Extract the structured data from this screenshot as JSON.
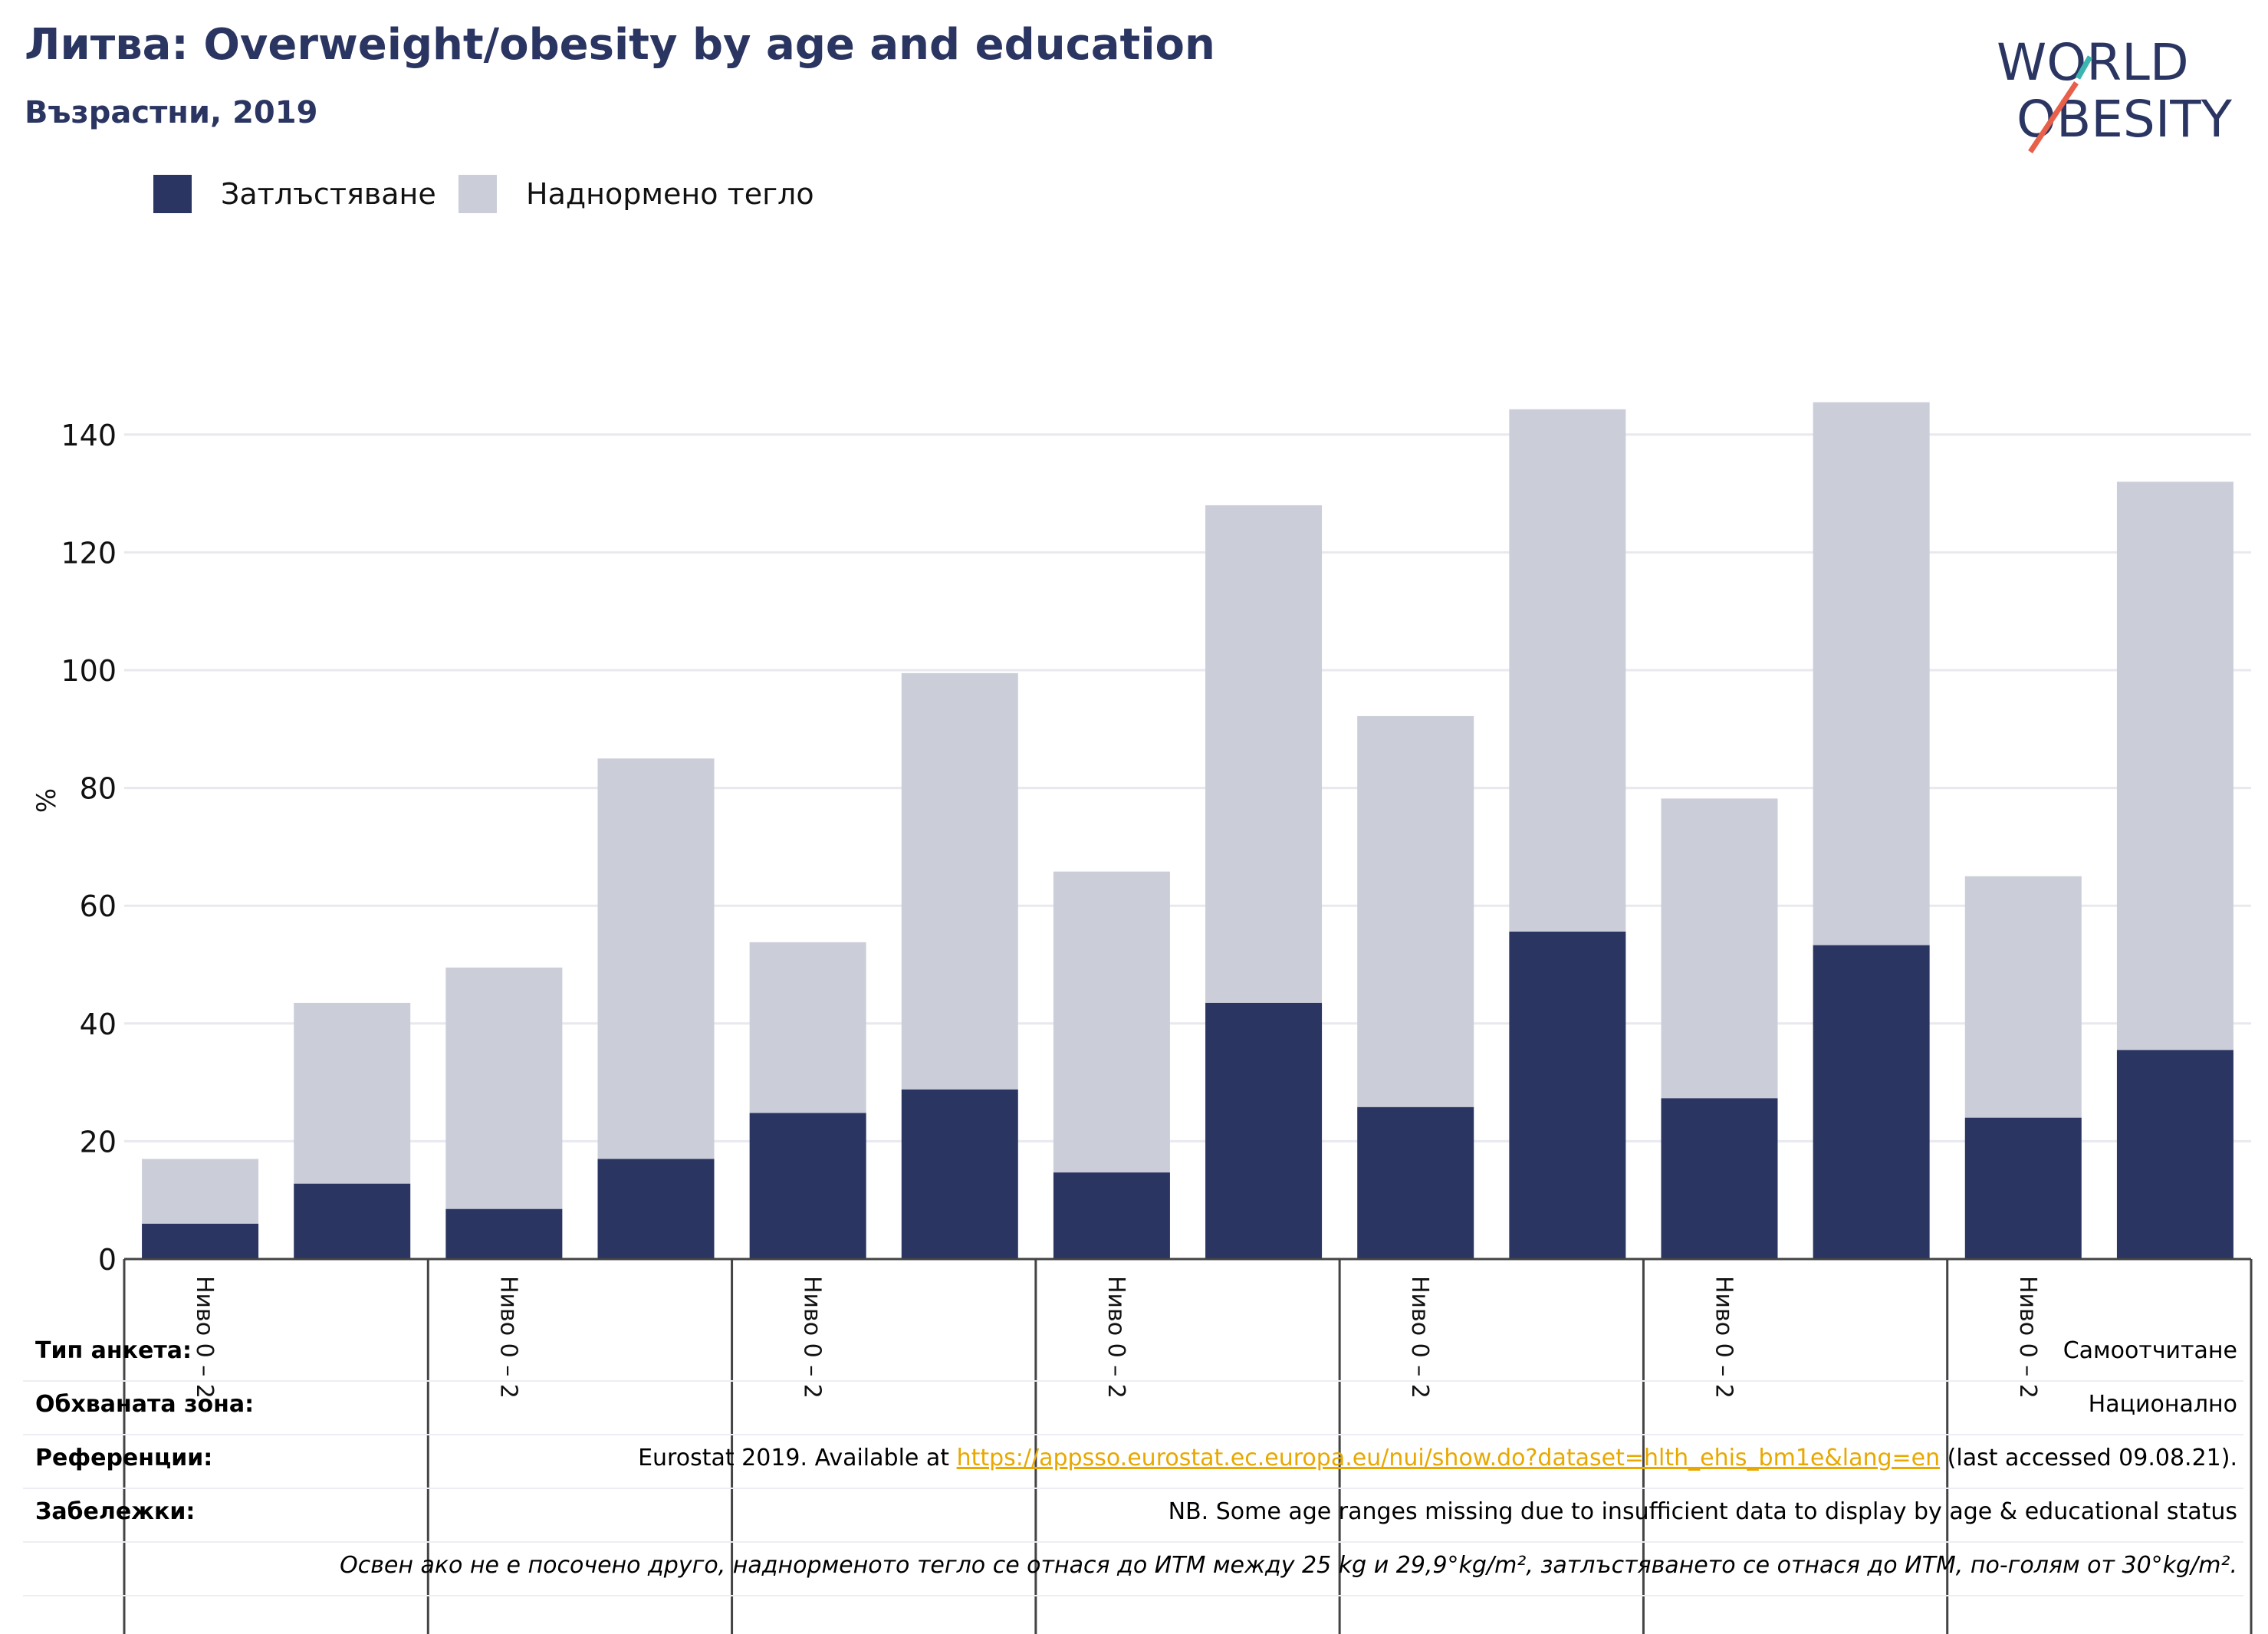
{
  "header": {
    "title": "Литва: Overweight/obesity by age and education",
    "subtitle": "Възрастни, 2019"
  },
  "logo": {
    "line1": "WORLD",
    "line2": "OBESITY",
    "colors": {
      "text": "#2a3561",
      "slash_red": "#e8604a",
      "slash_teal": "#3ab5b0"
    }
  },
  "legend": [
    {
      "label": "Затлъстяване",
      "color": "#2a3561"
    },
    {
      "label": "Наднормено тегло",
      "color": "#cbcdd9"
    }
  ],
  "chart_data": {
    "type": "bar",
    "stacked": true,
    "ylabel": "%",
    "ylim": [
      0,
      150
    ],
    "yticks": [
      0,
      20,
      40,
      60,
      80,
      100,
      120,
      140
    ],
    "grid": true,
    "legend_position": "top-left",
    "categories": [
      "Ниво 0 – 2",
      "",
      "Ниво 0 – 2",
      "",
      "Ниво 0 – 2",
      "",
      "Ниво 0 – 2",
      "",
      "Ниво 0 – 2",
      "",
      "Ниво 0 – 2",
      "",
      "Ниво 0 – 2",
      ""
    ],
    "tick_label_display": "Ниво 0 – 2",
    "series": [
      {
        "name": "Затлъстяване",
        "color": "#2a3561",
        "values": [
          6,
          12.8,
          8.5,
          17,
          24.8,
          28.8,
          14.7,
          43.5,
          25.8,
          55.6,
          27.3,
          53.3,
          24,
          35.5
        ]
      },
      {
        "name": "Наднормено тегло",
        "color": "#cbcdd9",
        "values": [
          11,
          30.7,
          41,
          68,
          29,
          70.7,
          51.1,
          84.5,
          66.4,
          88.7,
          50.9,
          92.2,
          41,
          96.5
        ]
      }
    ]
  },
  "meta": {
    "survey_type_label": "Тип анкета:",
    "survey_type_value": "Самоотчитане",
    "coverage_label": "Обхваната зона:",
    "coverage_value": "Национално",
    "references_label": "Референции:",
    "references_prefix": "Eurostat 2019. Available at ",
    "references_link": "https://appsso.eurostat.ec.europa.eu/nui/show.do?dataset=hlth_ehis_bm1e&lang=en",
    "references_suffix": " (last accessed 09.08.21).",
    "notes_label": "Забележки:",
    "notes_value": "NB. Some age ranges missing due to insufficient data to display by age & educational status",
    "definition": "Освен ако не е посочено друго, наднорменото тегло се отнася до ИТМ между 25 kg и 29,9°kg/m², затлъстяването се отнася до ИТМ, по-голям от 30°kg/m²."
  }
}
